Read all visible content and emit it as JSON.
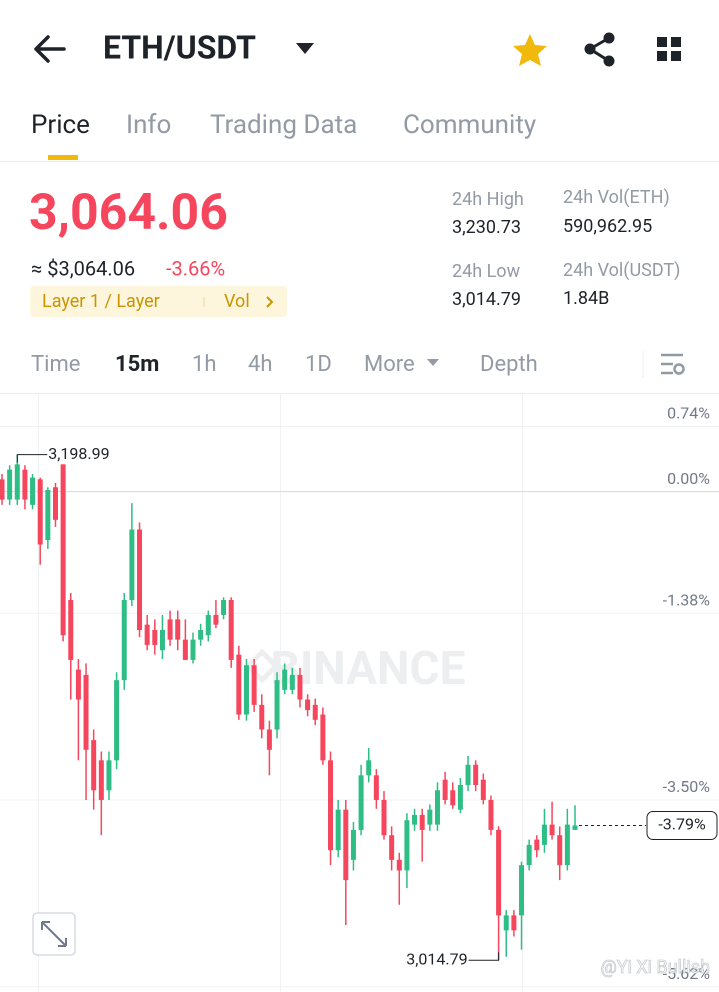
{
  "header": {
    "pair": "ETH/USDT"
  },
  "tabs": [
    "Price",
    "Info",
    "Trading Data",
    "Community"
  ],
  "ticker": {
    "price": "3,064.06",
    "approx": "≈ $3,064.06",
    "change": "-3.66%",
    "tag": "Layer 1 / Layer",
    "tag_action": "Vol",
    "stats": [
      {
        "label": "24h High",
        "value": "3,230.73"
      },
      {
        "label": "24h Vol(ETH)",
        "value": "590,962.95"
      },
      {
        "label": "24h Low",
        "value": "3,014.79"
      },
      {
        "label": "24h Vol(USDT)",
        "value": "1.84B"
      }
    ]
  },
  "intervals": [
    "Time",
    "15m",
    "1h",
    "4h",
    "1D",
    "More",
    "Depth"
  ],
  "chart_data": {
    "type": "candlestick",
    "ylim": [
      -5.68,
      1.12
    ],
    "yticks": [
      {
        "value": 0.74,
        "label": "0.74%"
      },
      {
        "value": 0,
        "label": "0.00%"
      },
      {
        "value": -1.38,
        "label": "-1.38%"
      },
      {
        "value": -3.5,
        "label": "-3.50%"
      },
      {
        "value": -5.62,
        "label": "-5.62%"
      }
    ],
    "up_color": "#2ebd85",
    "down_color": "#f6465d",
    "candles": [
      [
        0.14,
        0.2,
        -0.15,
        -0.09
      ],
      [
        -0.09,
        0.3,
        -0.15,
        0.25
      ],
      [
        -0.09,
        0.42,
        -0.15,
        0.31
      ],
      [
        0.25,
        0.3,
        -0.2,
        -0.09
      ],
      [
        -0.15,
        0.2,
        -0.2,
        0.16
      ],
      [
        0.14,
        0.16,
        -0.83,
        -0.6
      ],
      [
        -0.55,
        0.05,
        -0.65,
        0.02
      ],
      [
        0.05,
        0.1,
        -0.4,
        -0.32
      ],
      [
        0.31,
        0.31,
        -1.7,
        -1.63
      ],
      [
        -1.23,
        -1.15,
        -2.36,
        -1.91
      ],
      [
        -2.02,
        -1.9,
        -3.05,
        -2.36
      ],
      [
        -2.08,
        -1.95,
        -3.5,
        -2.93
      ],
      [
        -2.82,
        -2.7,
        -3.61,
        -3.39
      ],
      [
        -3.05,
        -2.95,
        -3.9,
        -3.5
      ],
      [
        -3.39,
        -2.95,
        -3.5,
        -3.05
      ],
      [
        -3.05,
        -2.05,
        -3.15,
        -2.14
      ],
      [
        -2.14,
        -1.15,
        -2.25,
        -1.23
      ],
      [
        -1.23,
        -0.13,
        -1.3,
        -0.43
      ],
      [
        -0.43,
        -0.35,
        -1.65,
        -1.57
      ],
      [
        -1.51,
        -1.4,
        -1.8,
        -1.74
      ],
      [
        -1.57,
        -1.45,
        -1.85,
        -1.74
      ],
      [
        -1.8,
        -1.4,
        -1.9,
        -1.57
      ],
      [
        -1.45,
        -1.35,
        -1.75,
        -1.68
      ],
      [
        -1.45,
        -1.35,
        -1.8,
        -1.68
      ],
      [
        -1.68,
        -1.45,
        -1.91,
        -1.91
      ],
      [
        -1.91,
        -1.6,
        -1.95,
        -1.68
      ],
      [
        -1.68,
        -1.5,
        -1.75,
        -1.57
      ],
      [
        -1.63,
        -1.35,
        -1.7,
        -1.4
      ],
      [
        -1.4,
        -1.23,
        -1.55,
        -1.51
      ],
      [
        -1.4,
        -1.2,
        -1.45,
        -1.23
      ],
      [
        -1.23,
        -1.2,
        -2.0,
        -1.91
      ],
      [
        -1.85,
        -1.75,
        -2.59,
        -2.53
      ],
      [
        -2.53,
        -1.9,
        -2.6,
        -1.97
      ],
      [
        -1.97,
        -1.9,
        -2.5,
        -2.42
      ],
      [
        -2.42,
        -2.3,
        -2.8,
        -2.7
      ],
      [
        -2.7,
        -2.6,
        -3.22,
        -2.93
      ],
      [
        -2.7,
        -2.05,
        -2.8,
        -2.14
      ],
      [
        -2.25,
        -1.95,
        -2.3,
        -2.02
      ],
      [
        -2.25,
        -2.0,
        -2.3,
        -2.08
      ],
      [
        -2.08,
        -2.0,
        -2.45,
        -2.36
      ],
      [
        -2.36,
        -2.3,
        -2.55,
        -2.48
      ],
      [
        -2.42,
        -2.35,
        -2.65,
        -2.59
      ],
      [
        -2.53,
        -2.45,
        -3.1,
        -3.05
      ],
      [
        -3.05,
        -2.95,
        -4.24,
        -4.07
      ],
      [
        -4.07,
        -3.5,
        -4.15,
        -3.61
      ],
      [
        -3.61,
        -3.5,
        -4.92,
        -4.41
      ],
      [
        -4.18,
        -3.75,
        -4.3,
        -3.84
      ],
      [
        -3.84,
        -3.1,
        -3.9,
        -3.22
      ],
      [
        -3.22,
        -2.91,
        -3.3,
        -3.05
      ],
      [
        -3.22,
        -3.15,
        -3.6,
        -3.5
      ],
      [
        -3.5,
        -3.4,
        -3.95,
        -3.9
      ],
      [
        -3.9,
        -3.8,
        -4.3,
        -4.18
      ],
      [
        -4.18,
        -4.1,
        -4.69,
        -4.3
      ],
      [
        -4.3,
        -3.65,
        -4.5,
        -3.73
      ],
      [
        -3.78,
        -3.6,
        -3.85,
        -3.67
      ],
      [
        -3.67,
        -3.6,
        -4.2,
        -3.84
      ],
      [
        -3.78,
        -3.55,
        -3.85,
        -3.61
      ],
      [
        -3.78,
        -3.3,
        -3.85,
        -3.39
      ],
      [
        -3.27,
        -3.18,
        -3.55,
        -3.5
      ],
      [
        -3.39,
        -3.3,
        -3.6,
        -3.56
      ],
      [
        -3.61,
        -3.25,
        -3.65,
        -3.33
      ],
      [
        -3.33,
        -3.0,
        -3.4,
        -3.1
      ],
      [
        -3.1,
        -3.05,
        -3.4,
        -3.33
      ],
      [
        -3.27,
        -3.2,
        -3.55,
        -3.5
      ],
      [
        -3.5,
        -3.45,
        -3.9,
        -3.84
      ],
      [
        -3.84,
        -3.8,
        -5.32,
        -4.81
      ],
      [
        -4.98,
        -4.75,
        -5.28,
        -4.81
      ],
      [
        -4.81,
        -4.75,
        -5.05,
        -4.98
      ],
      [
        -4.81,
        -4.2,
        -5.2,
        -4.24
      ],
      [
        -4.24,
        -3.95,
        -4.3,
        -4.01
      ],
      [
        -3.95,
        -3.9,
        -4.15,
        -4.07
      ],
      [
        -4.01,
        -3.6,
        -4.1,
        -3.78
      ],
      [
        -3.78,
        -3.52,
        -3.95,
        -3.9
      ],
      [
        -3.9,
        -3.8,
        -4.41,
        -4.24
      ],
      [
        -4.24,
        -3.6,
        -4.3,
        -3.78
      ],
      [
        -3.84,
        -3.56,
        -3.84,
        -3.79
      ]
    ],
    "high_label": "3,198.99",
    "low_label": "3,014.79",
    "last": {
      "value": -3.79,
      "label": "-3.79%"
    },
    "watermark": "BINANCE",
    "credit": "@Yi Xi Bullish"
  }
}
